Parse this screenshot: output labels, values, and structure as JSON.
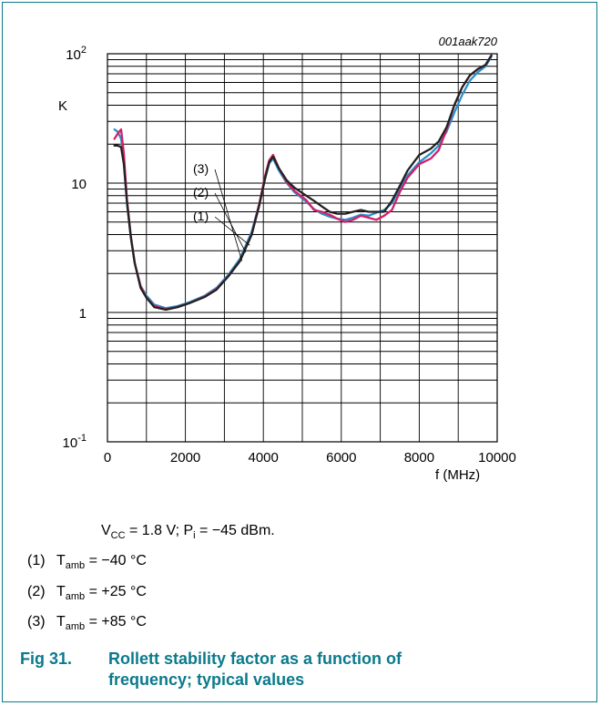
{
  "chart_data": {
    "type": "line",
    "figure_code": "001aak720",
    "xlabel": "f (MHz)",
    "ylabel": "K",
    "xlim": [
      0,
      10000
    ],
    "ylim": [
      0.1,
      100
    ],
    "y_scale": "log",
    "x_ticks": [
      "0",
      "2000",
      "4000",
      "6000",
      "8000",
      "10000"
    ],
    "y_tick_labels": [
      {
        "value": 100,
        "base": "10",
        "exp": "2"
      },
      {
        "value": 10,
        "base": "10",
        "exp": ""
      },
      {
        "value": 1,
        "base": "1",
        "exp": ""
      },
      {
        "value": 0.1,
        "base": "10",
        "exp": "-1"
      }
    ],
    "grid": true,
    "series_labels": [
      "(3)",
      "(2)",
      "(1)"
    ],
    "series": [
      {
        "name": "(1)",
        "color": "#2b8fc9",
        "x": [
          180,
          260,
          350,
          420,
          500,
          600,
          700,
          850,
          1000,
          1200,
          1500,
          1800,
          2100,
          2500,
          2800,
          3100,
          3400,
          3700,
          3900,
          4050,
          4150,
          4250,
          4400,
          4600,
          4800,
          5100,
          5300,
          5500,
          5700,
          5900,
          6100,
          6300,
          6500,
          6700,
          6900,
          7100,
          7300,
          7500,
          7700,
          8000,
          8300,
          8500,
          8700,
          8900,
          9100,
          9300,
          9500,
          9700,
          9850
        ],
        "y": [
          26,
          25,
          22,
          15,
          7,
          3.8,
          2.4,
          1.6,
          1.35,
          1.15,
          1.08,
          1.12,
          1.2,
          1.35,
          1.55,
          1.95,
          2.6,
          4.2,
          7.0,
          11,
          14.2,
          15.5,
          12.5,
          10,
          8.5,
          7.2,
          6.3,
          5.8,
          5.5,
          5.3,
          5.2,
          5.4,
          5.7,
          5.6,
          5.9,
          6.2,
          7.0,
          9.0,
          11.5,
          14.5,
          17,
          19.5,
          25,
          35,
          48,
          62,
          72,
          80,
          95
        ]
      },
      {
        "name": "(2)",
        "color": "#d41f6a",
        "x": [
          180,
          260,
          350,
          420,
          500,
          600,
          700,
          850,
          1000,
          1200,
          1500,
          1800,
          2100,
          2500,
          2800,
          3100,
          3400,
          3700,
          3900,
          4050,
          4150,
          4250,
          4400,
          4600,
          4800,
          5100,
          5300,
          5500,
          5700,
          5900,
          6100,
          6300,
          6500,
          6700,
          6900,
          7100,
          7300,
          7500,
          7700,
          8000,
          8300,
          8500,
          8700,
          8900,
          9100,
          9300,
          9500,
          9700,
          9850
        ],
        "y": [
          22,
          24,
          26,
          17,
          7.5,
          3.9,
          2.4,
          1.6,
          1.3,
          1.12,
          1.06,
          1.1,
          1.18,
          1.33,
          1.52,
          1.9,
          2.5,
          4.0,
          7.0,
          11.5,
          15,
          16.5,
          13,
          10.2,
          8.7,
          7.4,
          6.2,
          6.0,
          5.7,
          5.3,
          5.0,
          5.2,
          5.6,
          5.4,
          5.2,
          5.6,
          6.2,
          8.5,
          11,
          14,
          15.5,
          18,
          26,
          40,
          55,
          68,
          76,
          82,
          97
        ]
      },
      {
        "name": "(3)",
        "color": "#222222",
        "x": [
          180,
          260,
          350,
          420,
          500,
          600,
          700,
          850,
          1000,
          1200,
          1500,
          1800,
          2100,
          2500,
          2800,
          3100,
          3400,
          3700,
          3900,
          4050,
          4150,
          4250,
          4400,
          4600,
          4800,
          5100,
          5300,
          5500,
          5700,
          5900,
          6100,
          6300,
          6500,
          6700,
          6900,
          7100,
          7300,
          7500,
          7700,
          8000,
          8300,
          8500,
          8700,
          8900,
          9100,
          9300,
          9500,
          9700,
          9850
        ],
        "y": [
          19.5,
          19.5,
          19,
          14,
          7.2,
          3.8,
          2.4,
          1.55,
          1.3,
          1.1,
          1.05,
          1.1,
          1.18,
          1.32,
          1.5,
          1.9,
          2.5,
          4.0,
          6.8,
          11,
          14.5,
          16,
          13,
          10.5,
          9.2,
          8.0,
          7.3,
          6.6,
          6.0,
          5.8,
          5.8,
          6.0,
          6.2,
          6.0,
          6.0,
          6.0,
          7.3,
          9.5,
          12.5,
          16.5,
          18.5,
          21,
          27,
          40,
          55,
          68,
          76,
          82,
          97
        ]
      }
    ]
  },
  "notes": {
    "conditions": {
      "prefix": "V",
      "sub1": "CC",
      "mid": " = 1.8 V; P",
      "sub2": "i",
      "suffix": " = −45 dBm."
    },
    "items": [
      {
        "num": "(1)",
        "t": "T",
        "sub": "amb",
        "val": " = −40 °C"
      },
      {
        "num": "(2)",
        "t": "T",
        "sub": "amb",
        "val": " = +25 °C"
      },
      {
        "num": "(3)",
        "t": "T",
        "sub": "amb",
        "val": " = +85 °C"
      }
    ]
  },
  "caption": {
    "number": "Fig 31.",
    "line1": "Rollett stability factor as a function of",
    "line2": "frequency; typical values"
  },
  "colors": {
    "frame": "#0b7a8c",
    "caption": "#0b7a8c"
  }
}
